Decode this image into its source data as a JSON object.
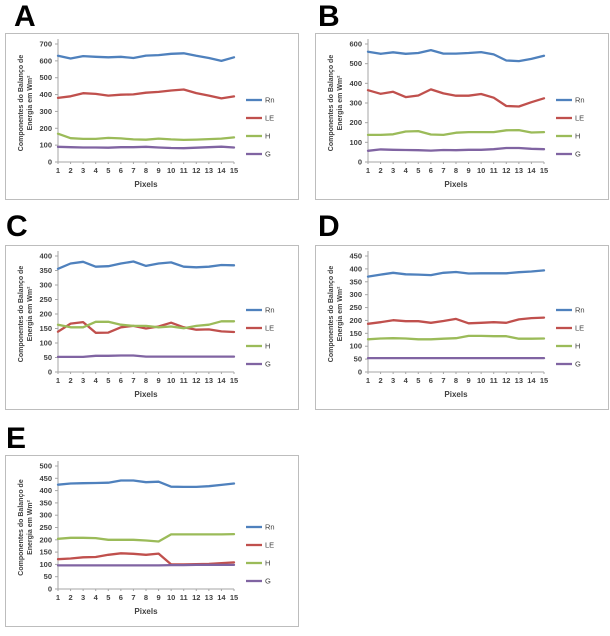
{
  "figure": {
    "ylabel_line1": "Componentes do Balanço  de",
    "ylabel_line2": "Energia em Wm²",
    "xlabel": "Pixels",
    "legend": [
      "Rn",
      "LE",
      "H",
      "G"
    ],
    "colors": {
      "Rn": "#4F81BD",
      "LE": "#C0504D",
      "H": "#9BBB59",
      "G": "#8064A2"
    },
    "axis_color": "#A6A6A6",
    "text_color": "#404040"
  },
  "panels": {
    "a_letter": "A",
    "b_letter": "B",
    "c_letter": "C",
    "d_letter": "D",
    "e_letter": "E"
  },
  "chart_data": [
    {
      "panel": "A",
      "type": "line",
      "categories": [
        1,
        2,
        3,
        4,
        5,
        6,
        7,
        8,
        9,
        10,
        11,
        12,
        13,
        14,
        15
      ],
      "xlabel": "Pixels",
      "ylabel": "Componentes do Balanço de Energia em Wm²",
      "ylim": [
        0,
        700
      ],
      "ystep": 100,
      "legend_position": "right",
      "grid": false,
      "series": [
        {
          "name": "Rn",
          "values": [
            630,
            614,
            628,
            624,
            621,
            624,
            617,
            631,
            634,
            642,
            645,
            630,
            617,
            600,
            621
          ]
        },
        {
          "name": "LE",
          "values": [
            380,
            390,
            408,
            404,
            394,
            399,
            401,
            411,
            416,
            424,
            430,
            409,
            394,
            377,
            389
          ]
        },
        {
          "name": "H",
          "values": [
            168,
            141,
            137,
            137,
            143,
            140,
            134,
            132,
            139,
            134,
            131,
            133,
            136,
            139,
            146
          ]
        },
        {
          "name": "G",
          "values": [
            90,
            88,
            86,
            86,
            85,
            88,
            88,
            90,
            86,
            83,
            82,
            85,
            88,
            91,
            86
          ]
        }
      ]
    },
    {
      "panel": "B",
      "type": "line",
      "categories": [
        1,
        2,
        3,
        4,
        5,
        6,
        7,
        8,
        9,
        10,
        11,
        12,
        13,
        14,
        15
      ],
      "xlabel": "Pixels",
      "ylabel": "Componentes do Balanço de Energia em Wm²",
      "ylim": [
        0,
        600
      ],
      "ystep": 100,
      "legend_position": "right",
      "grid": false,
      "series": [
        {
          "name": "Rn",
          "values": [
            561,
            550,
            558,
            550,
            554,
            569,
            551,
            551,
            554,
            559,
            547,
            516,
            513,
            524,
            540
          ]
        },
        {
          "name": "LE",
          "values": [
            365,
            347,
            357,
            330,
            338,
            369,
            349,
            337,
            337,
            346,
            327,
            285,
            282,
            304,
            324
          ]
        },
        {
          "name": "H",
          "values": [
            138,
            138,
            141,
            155,
            157,
            140,
            138,
            149,
            152,
            152,
            152,
            161,
            162,
            150,
            152
          ]
        },
        {
          "name": "G",
          "values": [
            57,
            64,
            62,
            61,
            60,
            58,
            61,
            60,
            62,
            62,
            65,
            71,
            71,
            67,
            65
          ]
        }
      ]
    },
    {
      "panel": "C",
      "type": "line",
      "categories": [
        1,
        2,
        3,
        4,
        5,
        6,
        7,
        8,
        9,
        10,
        11,
        12,
        13,
        14,
        15
      ],
      "xlabel": "Pixels",
      "ylabel": "Componentes do Balanço de Energia em Wm²",
      "ylim": [
        0,
        400
      ],
      "ystep": 50,
      "legend_position": "right",
      "grid": false,
      "series": [
        {
          "name": "Rn",
          "values": [
            356,
            374,
            380,
            363,
            365,
            374,
            381,
            366,
            374,
            378,
            363,
            361,
            363,
            369,
            368
          ]
        },
        {
          "name": "LE",
          "values": [
            139,
            167,
            172,
            135,
            136,
            154,
            159,
            150,
            157,
            170,
            154,
            146,
            147,
            140,
            138
          ]
        },
        {
          "name": "H",
          "values": [
            163,
            154,
            154,
            173,
            173,
            163,
            159,
            159,
            154,
            157,
            151,
            159,
            163,
            175,
            175
          ]
        },
        {
          "name": "G",
          "values": [
            52,
            52,
            52,
            56,
            56,
            57,
            57,
            53,
            53,
            53,
            53,
            53,
            53,
            53,
            53
          ]
        }
      ]
    },
    {
      "panel": "D",
      "type": "line",
      "categories": [
        1,
        2,
        3,
        4,
        5,
        6,
        7,
        8,
        9,
        10,
        11,
        12,
        13,
        14,
        15
      ],
      "xlabel": "Pixels",
      "ylabel": "Componentes do Balanço de Energia em Wm²",
      "ylim": [
        0,
        450
      ],
      "ystep": 50,
      "legend_position": "right",
      "grid": false,
      "series": [
        {
          "name": "Rn",
          "values": [
            370,
            378,
            385,
            379,
            378,
            376,
            385,
            388,
            382,
            383,
            383,
            383,
            387,
            390,
            394
          ]
        },
        {
          "name": "LE",
          "values": [
            187,
            193,
            201,
            197,
            197,
            191,
            198,
            206,
            189,
            191,
            193,
            191,
            204,
            209,
            211
          ]
        },
        {
          "name": "H",
          "values": [
            127,
            130,
            131,
            130,
            127,
            127,
            129,
            131,
            140,
            140,
            139,
            139,
            129,
            129,
            130
          ]
        },
        {
          "name": "G",
          "values": [
            54,
            54,
            54,
            54,
            54,
            54,
            54,
            54,
            54,
            54,
            54,
            54,
            54,
            54,
            54
          ]
        }
      ]
    },
    {
      "panel": "E",
      "type": "line",
      "categories": [
        1,
        2,
        3,
        4,
        5,
        6,
        7,
        8,
        9,
        10,
        11,
        12,
        13,
        14,
        15
      ],
      "xlabel": "Pixels",
      "ylabel": "Componentes do Balanço de Energia em Wm²",
      "ylim": [
        0,
        500
      ],
      "ystep": 50,
      "legend_position": "right",
      "grid": false,
      "series": [
        {
          "name": "Rn",
          "values": [
            424,
            429,
            430,
            431,
            432,
            441,
            441,
            434,
            436,
            416,
            415,
            415,
            418,
            423,
            429
          ]
        },
        {
          "name": "LE",
          "values": [
            121,
            124,
            129,
            130,
            139,
            145,
            143,
            139,
            144,
            100,
            100,
            101,
            102,
            105,
            108
          ]
        },
        {
          "name": "H",
          "values": [
            204,
            208,
            208,
            207,
            200,
            200,
            200,
            197,
            193,
            222,
            222,
            222,
            222,
            222,
            223
          ]
        },
        {
          "name": "G",
          "values": [
            96,
            96,
            96,
            96,
            96,
            96,
            96,
            96,
            96,
            97,
            97,
            98,
            98,
            98,
            98
          ]
        }
      ]
    }
  ]
}
